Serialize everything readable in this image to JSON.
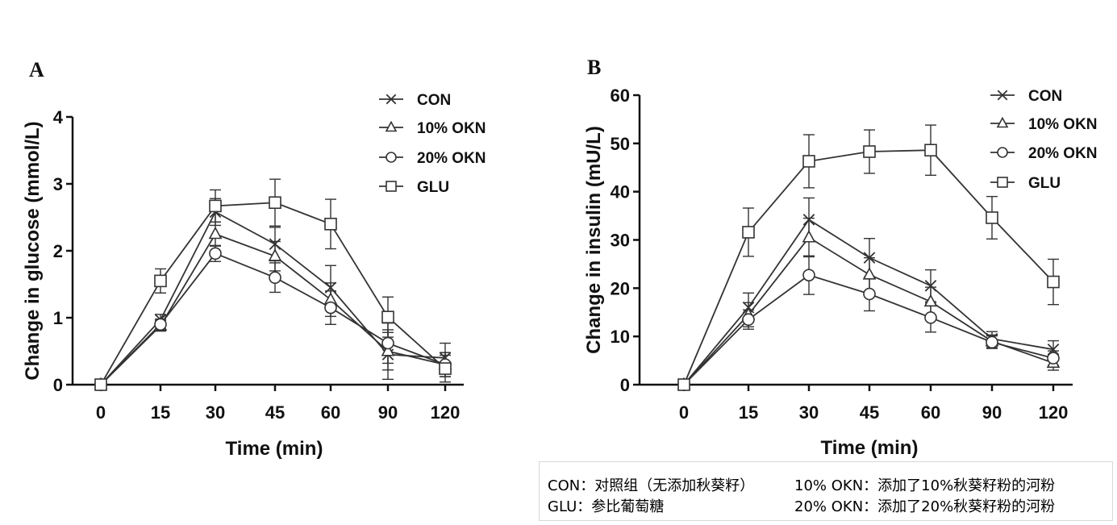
{
  "chart_data": [
    {
      "panel": "A",
      "type": "line",
      "ylabel": "Change in glucose (mmol/L)",
      "xlabel": "Time (min)",
      "categories": [
        "0",
        "15",
        "30",
        "45",
        "60",
        "90",
        "120"
      ],
      "ylim": [
        0,
        4
      ],
      "yticks": [
        0,
        1,
        2,
        3,
        4
      ],
      "legend_placement": "top-right",
      "series": [
        {
          "name": "CON",
          "marker": "x",
          "values": [
            0,
            0.97,
            2.58,
            2.1,
            1.45,
            0.45,
            0.4
          ],
          "err": [
            0.04,
            0.08,
            0.2,
            0.25,
            0.33,
            0.37,
            0.22
          ]
        },
        {
          "name": "10% OKN",
          "marker": "triangle",
          "values": [
            0,
            0.88,
            2.25,
            1.92,
            1.27,
            0.5,
            0.3
          ],
          "err": [
            0.04,
            0.08,
            0.18,
            0.22,
            0.25,
            0.28,
            0.18
          ]
        },
        {
          "name": "20% OKN",
          "marker": "circle",
          "values": [
            0,
            0.9,
            1.96,
            1.6,
            1.15,
            0.62,
            0.3
          ],
          "err": [
            0.04,
            0.08,
            0.12,
            0.22,
            0.25,
            0.3,
            0.18
          ]
        },
        {
          "name": "GLU",
          "marker": "square",
          "values": [
            0,
            1.55,
            2.67,
            2.72,
            2.4,
            1.01,
            0.24
          ],
          "err": [
            0.04,
            0.18,
            0.24,
            0.35,
            0.37,
            0.3,
            0.2
          ]
        }
      ]
    },
    {
      "panel": "B",
      "type": "line",
      "ylabel": "Change in insulin (mU/L)",
      "xlabel": "Time (min)",
      "categories": [
        "0",
        "15",
        "30",
        "45",
        "60",
        "90",
        "120"
      ],
      "ylim": [
        0,
        60
      ],
      "yticks": [
        0,
        10,
        20,
        30,
        40,
        50,
        60
      ],
      "legend_placement": "top-right",
      "series": [
        {
          "name": "CON",
          "marker": "x",
          "values": [
            0,
            16,
            34.2,
            26.3,
            20.5,
            9.5,
            7.3
          ],
          "err": [
            0.5,
            3,
            4.5,
            4,
            3.3,
            1.5,
            1.8
          ]
        },
        {
          "name": "10% OKN",
          "marker": "triangle",
          "values": [
            0,
            14.5,
            30.5,
            22.8,
            17.2,
            9,
            4.5
          ],
          "err": [
            0.5,
            2.5,
            4,
            3.5,
            3,
            1.3,
            1.5
          ]
        },
        {
          "name": "20% OKN",
          "marker": "circle",
          "values": [
            0,
            13.5,
            22.7,
            18.8,
            13.9,
            8.8,
            5.5
          ],
          "err": [
            0.5,
            2,
            4,
            3.5,
            3,
            1.3,
            1.5
          ]
        },
        {
          "name": "GLU",
          "marker": "square",
          "values": [
            0,
            31.6,
            46.3,
            48.3,
            48.6,
            34.6,
            21.3
          ],
          "err": [
            0.5,
            5,
            5.5,
            4.5,
            5.2,
            4.4,
            4.7
          ]
        }
      ]
    }
  ],
  "note": {
    "line1_left": "CON：对照组（无添加秋葵籽）",
    "line1_right": "10% OKN：添加了10%秋葵籽粉的河粉",
    "line2_left": "GLU：参比葡萄糖",
    "line2_right": "20% OKN：添加了20%秋葵籽粉的河粉"
  }
}
